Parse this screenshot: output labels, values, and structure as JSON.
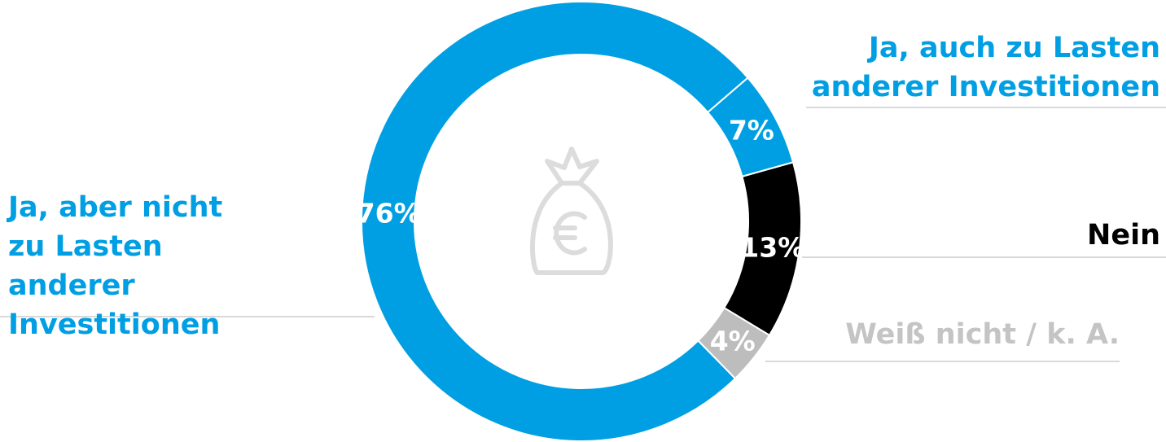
{
  "chart_data": {
    "type": "donut",
    "categories": [
      "Ja, aber nicht zu Lasten anderer Investitionen",
      "Ja, auch zu Lasten anderer Investitionen",
      "Nein",
      "Weiß nicht / k. A."
    ],
    "values": [
      76,
      7,
      13,
      4
    ],
    "value_labels": [
      "76%",
      "7%",
      "13%",
      "4%"
    ],
    "colors": [
      "#009fe3",
      "#009fe3",
      "#000000",
      "#bdbdbd"
    ],
    "label_colors": [
      "#009fe3",
      "#009fe3",
      "#000000",
      "#c4c4c4"
    ]
  }
}
